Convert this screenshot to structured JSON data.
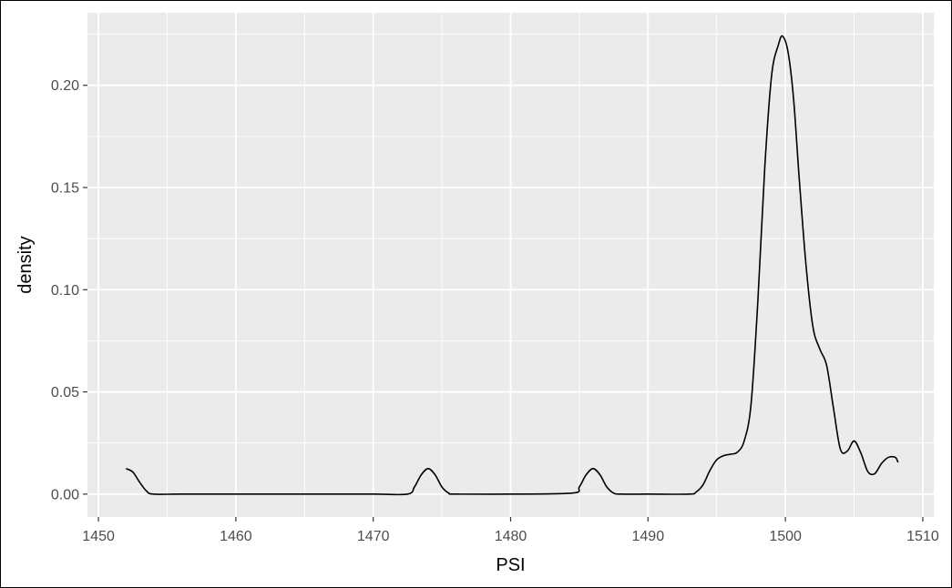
{
  "chart_data": {
    "type": "line",
    "title": "",
    "xlabel": "PSI",
    "ylabel": "density",
    "xlim": [
      1449.2,
      1510.8
    ],
    "ylim": [
      -0.0112,
      0.2355
    ],
    "x_ticks": [
      1450,
      1460,
      1470,
      1480,
      1490,
      1500,
      1510
    ],
    "x_tick_labels": [
      "1450",
      "1460",
      "1470",
      "1480",
      "1490",
      "1500",
      "1510"
    ],
    "y_ticks": [
      0,
      0.05,
      0.1,
      0.15,
      0.2
    ],
    "y_tick_labels": [
      "0.00",
      "0.05",
      "0.10",
      "0.15",
      "0.20"
    ],
    "grid": true,
    "colors": {
      "panel": "#ebebeb",
      "grid": "#ffffff",
      "line": "#000000",
      "tick_text": "#4d4d4d"
    },
    "series": [
      {
        "x": [
          1452.0,
          1452.5,
          1453.0,
          1453.5,
          1454.0,
          1456.0,
          1460.0,
          1465.0,
          1470.0,
          1472.5,
          1473.0,
          1473.5,
          1474.0,
          1474.5,
          1475.0,
          1475.5,
          1476.0,
          1480.0,
          1484.5,
          1485.0,
          1485.5,
          1486.0,
          1486.5,
          1487.0,
          1487.5,
          1488.0,
          1490.0,
          1493.0,
          1493.5,
          1494.0,
          1494.5,
          1495.0,
          1495.5,
          1496.0,
          1496.5,
          1497.0,
          1497.5,
          1498.0,
          1498.5,
          1499.0,
          1499.5,
          1499.8,
          1500.2,
          1500.6,
          1501.0,
          1501.5,
          1502.0,
          1502.5,
          1503.0,
          1503.5,
          1504.0,
          1504.5,
          1505.0,
          1505.5,
          1506.0,
          1506.5,
          1507.0,
          1507.5,
          1508.0,
          1508.2
        ],
        "y": [
          0.0125,
          0.0108,
          0.0058,
          0.0015,
          0.0,
          0.0,
          0.0,
          0.0,
          0.0,
          0.0,
          0.0035,
          0.0095,
          0.0125,
          0.0095,
          0.0035,
          0.0005,
          0.0,
          0.0,
          0.0005,
          0.0035,
          0.0095,
          0.0125,
          0.0095,
          0.0035,
          0.0005,
          0.0,
          0.0,
          0.0,
          0.001,
          0.0045,
          0.0115,
          0.0168,
          0.0188,
          0.0195,
          0.0205,
          0.026,
          0.044,
          0.095,
          0.16,
          0.205,
          0.22,
          0.224,
          0.216,
          0.193,
          0.155,
          0.112,
          0.082,
          0.071,
          0.063,
          0.042,
          0.022,
          0.021,
          0.026,
          0.02,
          0.011,
          0.01,
          0.015,
          0.018,
          0.018,
          0.0155
        ]
      }
    ]
  }
}
